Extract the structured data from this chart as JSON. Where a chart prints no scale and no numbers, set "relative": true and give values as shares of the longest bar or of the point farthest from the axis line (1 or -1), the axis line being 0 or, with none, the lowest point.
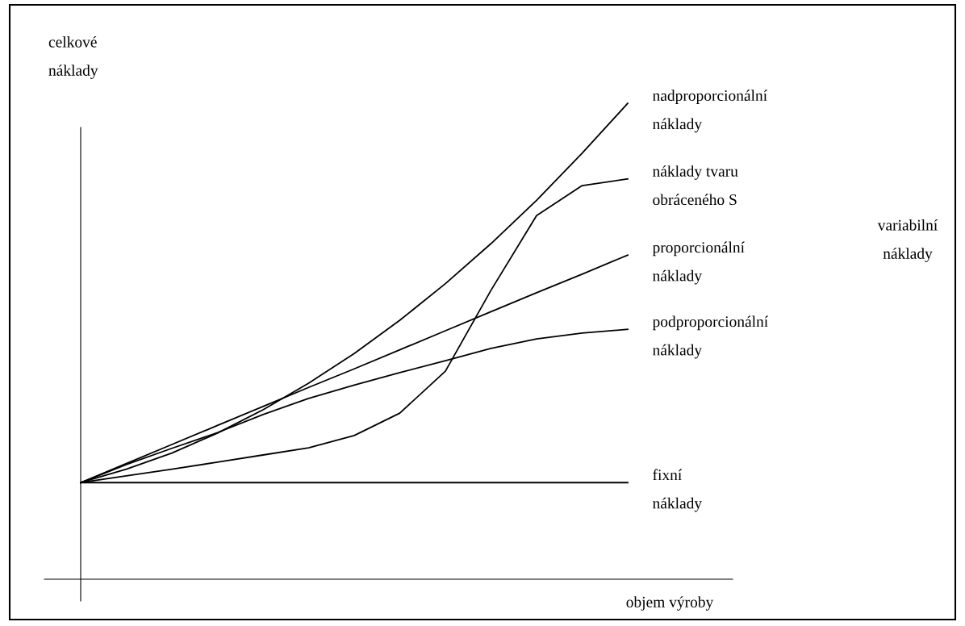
{
  "chart_data": {
    "type": "line",
    "relative": true,
    "tick_labels": false,
    "xlabel": "objem výroby",
    "ylabel": "celkové\nnáklady",
    "annotations": [
      "variabilní\nnáklady"
    ],
    "categories": [
      null,
      null,
      null,
      null,
      null,
      null,
      null,
      null,
      null,
      null,
      null,
      null,
      null
    ],
    "series": [
      {
        "name": "nadproporcionální\nnáklady",
        "color": "#000000",
        "values": [
          0.203,
          0.231,
          0.265,
          0.307,
          0.356,
          0.412,
          0.474,
          0.544,
          0.621,
          0.705,
          0.796,
          0.895,
          1.0
        ]
      },
      {
        "name": "náklady tvaru\nobráceného S",
        "color": "#000000",
        "values": [
          0.203,
          0.217,
          0.231,
          0.246,
          0.261,
          0.276,
          0.302,
          0.349,
          0.437,
          0.607,
          0.764,
          0.827,
          0.841
        ]
      },
      {
        "name": "proporcionální\nnáklady",
        "color": "#000000",
        "values": [
          0.203,
          0.243,
          0.283,
          0.323,
          0.363,
          0.403,
          0.442,
          0.482,
          0.522,
          0.562,
          0.602,
          0.641,
          0.681
        ]
      },
      {
        "name": "podproporcionální\nnáklady",
        "color": "#000000",
        "values": [
          0.203,
          0.241,
          0.275,
          0.308,
          0.346,
          0.38,
          0.408,
          0.434,
          0.459,
          0.485,
          0.505,
          0.517,
          0.525
        ]
      },
      {
        "name": "fixní\nnáklady",
        "color": "#000000",
        "values": [
          0.203,
          0.203,
          0.203,
          0.203,
          0.203,
          0.203,
          0.203,
          0.203,
          0.203,
          0.203,
          0.203,
          0.203,
          0.203
        ]
      }
    ]
  }
}
